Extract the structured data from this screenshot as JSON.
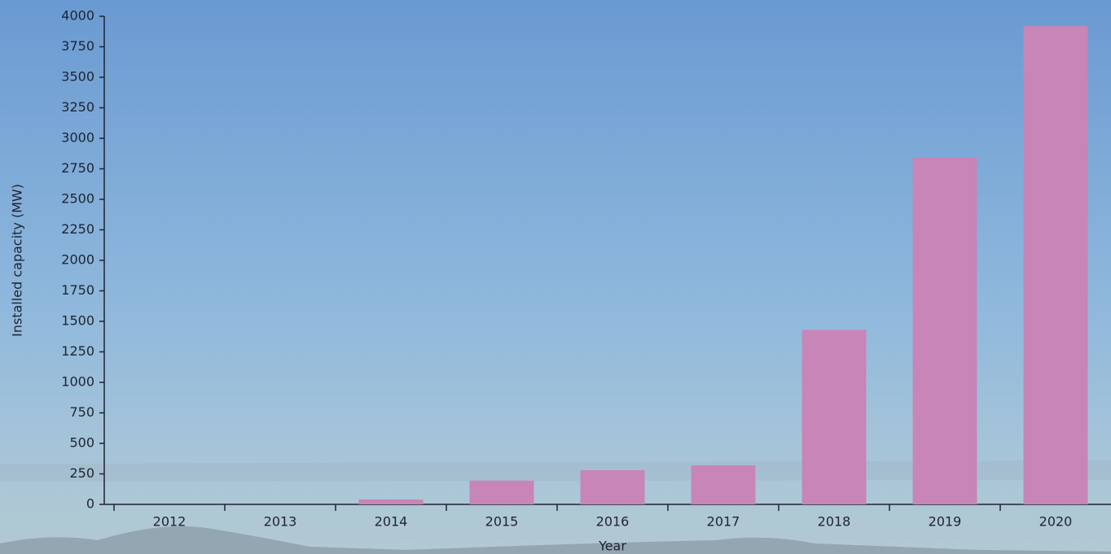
{
  "chart_data": {
    "type": "bar",
    "x_label": "Year",
    "y_label": "Installed capacity (MW)",
    "categories": [
      "2012",
      "2013",
      "2014",
      "2015",
      "2016",
      "2017",
      "2018",
      "2019",
      "2020"
    ],
    "values": [
      0,
      0,
      40,
      195,
      280,
      320,
      1430,
      2840,
      3920
    ],
    "color": "#c785b8",
    "ylim": [
      0,
      4000
    ],
    "yticks": [
      0,
      250,
      500,
      750,
      1000,
      1250,
      1500,
      1750,
      2000,
      2250,
      2500,
      2750,
      3000,
      3250,
      3500,
      3750,
      4000
    ]
  }
}
